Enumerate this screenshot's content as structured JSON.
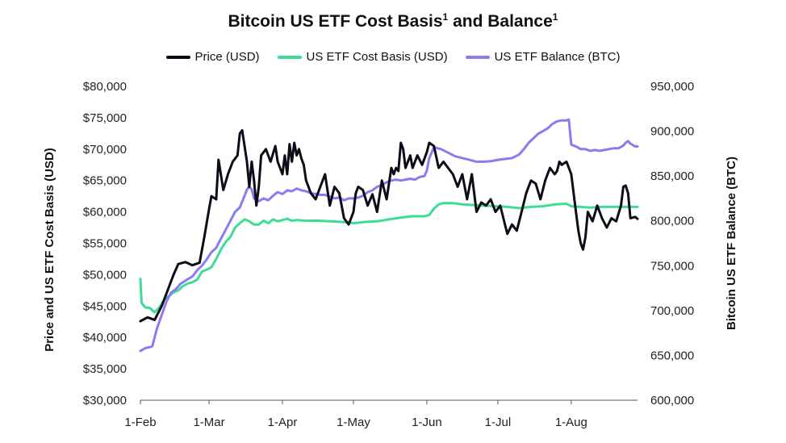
{
  "chart_data": {
    "type": "line",
    "title": "Bitcoin US ETF Cost Basis",
    "title_sup": "1",
    "title_mid": " and Balance",
    "title_sup2": "1",
    "ylabel_left": "Price and US ETF Cost Basis (USD)",
    "ylabel_right": "Bitcoin US ETF Balance (BTC)",
    "x_ticks": [
      {
        "label": "1-Feb",
        "day": 0
      },
      {
        "label": "1-Mar",
        "day": 29
      },
      {
        "label": "1-Apr",
        "day": 60
      },
      {
        "label": "1-May",
        "day": 90
      },
      {
        "label": "1-Jun",
        "day": 121
      },
      {
        "label": "1-Jul",
        "day": 151
      },
      {
        "label": "1-Aug",
        "day": 182
      }
    ],
    "x_range": [
      0,
      210
    ],
    "ylim_left": [
      30000,
      80000
    ],
    "yticks_left": [
      "$30,000",
      "$35,000",
      "$40,000",
      "$45,000",
      "$50,000",
      "$55,000",
      "$60,000",
      "$65,000",
      "$70,000",
      "$75,000",
      "$80,000"
    ],
    "ylim_right": [
      600000,
      950000
    ],
    "yticks_right": [
      "600,000",
      "650,000",
      "700,000",
      "750,000",
      "800,000",
      "850,000",
      "900,000",
      "950,000"
    ],
    "colors": {
      "price": "#0d0d1a",
      "cost_basis": "#3ddc97",
      "balance": "#8a7cf0"
    },
    "series": [
      {
        "key": "price",
        "name": "Price (USD)",
        "axis": "left",
        "points": [
          [
            0,
            42600
          ],
          [
            3,
            43200
          ],
          [
            6,
            42800
          ],
          [
            9,
            45000
          ],
          [
            12,
            48000
          ],
          [
            14,
            50000
          ],
          [
            16,
            51700
          ],
          [
            19,
            52000
          ],
          [
            22,
            51500
          ],
          [
            25,
            51900
          ],
          [
            27,
            56000
          ],
          [
            29,
            60500
          ],
          [
            30,
            62500
          ],
          [
            32,
            62000
          ],
          [
            33,
            68300
          ],
          [
            35,
            63500
          ],
          [
            37,
            66000
          ],
          [
            39,
            68000
          ],
          [
            41,
            69000
          ],
          [
            42,
            72500
          ],
          [
            43,
            73000
          ],
          [
            45,
            68000
          ],
          [
            46,
            64000
          ],
          [
            47,
            68000
          ],
          [
            48,
            65000
          ],
          [
            49,
            61000
          ],
          [
            50,
            64000
          ],
          [
            51,
            69000
          ],
          [
            53,
            70000
          ],
          [
            55,
            68000
          ],
          [
            57,
            70500
          ],
          [
            58,
            68000
          ],
          [
            60,
            66000
          ],
          [
            61,
            69000
          ],
          [
            62,
            66000
          ],
          [
            63,
            70800
          ],
          [
            64,
            68000
          ],
          [
            65,
            71000
          ],
          [
            66,
            69000
          ],
          [
            67,
            70000
          ],
          [
            68,
            68500
          ],
          [
            69,
            67500
          ],
          [
            70,
            65000
          ],
          [
            72,
            63000
          ],
          [
            74,
            62000
          ],
          [
            76,
            64000
          ],
          [
            78,
            66000
          ],
          [
            80,
            61000
          ],
          [
            82,
            64000
          ],
          [
            84,
            63000
          ],
          [
            86,
            59000
          ],
          [
            88,
            58000
          ],
          [
            90,
            60000
          ],
          [
            91,
            63000
          ],
          [
            92,
            64000
          ],
          [
            94,
            63500
          ],
          [
            96,
            61000
          ],
          [
            98,
            62800
          ],
          [
            100,
            60000
          ],
          [
            102,
            65000
          ],
          [
            104,
            62000
          ],
          [
            106,
            67000
          ],
          [
            107,
            66000
          ],
          [
            108,
            67000
          ],
          [
            109,
            66500
          ],
          [
            110,
            71000
          ],
          [
            111,
            70000
          ],
          [
            112,
            67000
          ],
          [
            114,
            69000
          ],
          [
            115,
            67000
          ],
          [
            117,
            69000
          ],
          [
            119,
            67500
          ],
          [
            121,
            69500
          ],
          [
            122,
            71000
          ],
          [
            124,
            70500
          ],
          [
            126,
            67000
          ],
          [
            128,
            68000
          ],
          [
            130,
            67000
          ],
          [
            132,
            66000
          ],
          [
            134,
            64000
          ],
          [
            136,
            66000
          ],
          [
            138,
            62000
          ],
          [
            140,
            66000
          ],
          [
            142,
            60000
          ],
          [
            144,
            61500
          ],
          [
            146,
            61000
          ],
          [
            148,
            62000
          ],
          [
            150,
            60000
          ],
          [
            152,
            61000
          ],
          [
            154,
            58000
          ],
          [
            155,
            56500
          ],
          [
            157,
            58000
          ],
          [
            159,
            57000
          ],
          [
            161,
            60000
          ],
          [
            163,
            63000
          ],
          [
            165,
            65000
          ],
          [
            167,
            64500
          ],
          [
            169,
            62000
          ],
          [
            171,
            65000
          ],
          [
            173,
            67000
          ],
          [
            175,
            66000
          ],
          [
            176,
            66500
          ],
          [
            177,
            68000
          ],
          [
            178,
            67500
          ],
          [
            180,
            68000
          ],
          [
            182,
            66000
          ],
          [
            184,
            60000
          ],
          [
            185,
            57000
          ],
          [
            186,
            55000
          ],
          [
            187,
            54000
          ],
          [
            188,
            56000
          ],
          [
            189,
            60000
          ],
          [
            191,
            58500
          ],
          [
            193,
            61000
          ],
          [
            195,
            59000
          ],
          [
            197,
            57500
          ],
          [
            199,
            59000
          ],
          [
            201,
            58500
          ],
          [
            203,
            61000
          ],
          [
            204,
            64000
          ],
          [
            205,
            64200
          ],
          [
            206,
            63000
          ],
          [
            207,
            59000
          ],
          [
            209,
            59200
          ],
          [
            210,
            58900
          ]
        ]
      },
      {
        "key": "cost_basis",
        "name": "US ETF Cost Basis (USD)",
        "axis": "left",
        "points": [
          [
            0,
            49300
          ],
          [
            0.5,
            45500
          ],
          [
            2,
            44800
          ],
          [
            4,
            44700
          ],
          [
            6,
            44000
          ],
          [
            8,
            44800
          ],
          [
            10,
            46000
          ],
          [
            12,
            46600
          ],
          [
            14,
            47200
          ],
          [
            16,
            47500
          ],
          [
            18,
            48200
          ],
          [
            20,
            48600
          ],
          [
            22,
            48800
          ],
          [
            24,
            49200
          ],
          [
            26,
            50500
          ],
          [
            28,
            50800
          ],
          [
            30,
            51200
          ],
          [
            32,
            52500
          ],
          [
            34,
            54000
          ],
          [
            36,
            55200
          ],
          [
            38,
            56000
          ],
          [
            40,
            57500
          ],
          [
            42,
            58200
          ],
          [
            44,
            58800
          ],
          [
            46,
            58500
          ],
          [
            48,
            58000
          ],
          [
            50,
            58000
          ],
          [
            52,
            58600
          ],
          [
            54,
            58200
          ],
          [
            56,
            58800
          ],
          [
            58,
            58500
          ],
          [
            60,
            58700
          ],
          [
            62,
            58900
          ],
          [
            64,
            58600
          ],
          [
            66,
            58700
          ],
          [
            70,
            58600
          ],
          [
            75,
            58600
          ],
          [
            80,
            58500
          ],
          [
            85,
            58400
          ],
          [
            88,
            58300
          ],
          [
            90,
            58200
          ],
          [
            95,
            58400
          ],
          [
            100,
            58500
          ],
          [
            105,
            58800
          ],
          [
            110,
            59100
          ],
          [
            115,
            59300
          ],
          [
            120,
            59300
          ],
          [
            122,
            59500
          ],
          [
            124,
            60500
          ],
          [
            126,
            61200
          ],
          [
            128,
            61400
          ],
          [
            132,
            61400
          ],
          [
            136,
            61200
          ],
          [
            140,
            61100
          ],
          [
            145,
            61000
          ],
          [
            150,
            60900
          ],
          [
            155,
            60800
          ],
          [
            160,
            60600
          ],
          [
            165,
            60800
          ],
          [
            170,
            60900
          ],
          [
            175,
            61200
          ],
          [
            180,
            61300
          ],
          [
            182,
            60900
          ],
          [
            186,
            60800
          ],
          [
            190,
            60700
          ],
          [
            195,
            60800
          ],
          [
            200,
            60800
          ],
          [
            205,
            60800
          ],
          [
            210,
            60800
          ]
        ]
      },
      {
        "key": "balance",
        "name": "US ETF Balance (BTC)",
        "axis": "right",
        "points": [
          [
            0,
            655000
          ],
          [
            2,
            658000
          ],
          [
            5,
            660000
          ],
          [
            7,
            680000
          ],
          [
            9,
            695000
          ],
          [
            11,
            710000
          ],
          [
            13,
            720000
          ],
          [
            15,
            724000
          ],
          [
            17,
            730000
          ],
          [
            20,
            735000
          ],
          [
            22,
            738000
          ],
          [
            24,
            745000
          ],
          [
            26,
            750000
          ],
          [
            28,
            757000
          ],
          [
            30,
            765000
          ],
          [
            32,
            770000
          ],
          [
            34,
            780000
          ],
          [
            36,
            790000
          ],
          [
            38,
            800000
          ],
          [
            40,
            810000
          ],
          [
            42,
            815000
          ],
          [
            44,
            828000
          ],
          [
            45,
            835000
          ],
          [
            46,
            838000
          ],
          [
            47,
            835000
          ],
          [
            48,
            825000
          ],
          [
            50,
            822000
          ],
          [
            52,
            825000
          ],
          [
            54,
            823000
          ],
          [
            56,
            828000
          ],
          [
            58,
            832000
          ],
          [
            60,
            830000
          ],
          [
            62,
            834000
          ],
          [
            64,
            833000
          ],
          [
            66,
            836000
          ],
          [
            68,
            834000
          ],
          [
            70,
            833000
          ],
          [
            72,
            831000
          ],
          [
            74,
            830000
          ],
          [
            76,
            829000
          ],
          [
            78,
            829000
          ],
          [
            80,
            827000
          ],
          [
            82,
            825000
          ],
          [
            84,
            826000
          ],
          [
            86,
            823000
          ],
          [
            88,
            825000
          ],
          [
            90,
            825000
          ],
          [
            92,
            826000
          ],
          [
            94,
            828000
          ],
          [
            96,
            832000
          ],
          [
            98,
            834000
          ],
          [
            100,
            838000
          ],
          [
            102,
            840000
          ],
          [
            104,
            843000
          ],
          [
            106,
            845000
          ],
          [
            108,
            846000
          ],
          [
            110,
            845000
          ],
          [
            112,
            846000
          ],
          [
            114,
            847000
          ],
          [
            116,
            846000
          ],
          [
            118,
            849000
          ],
          [
            120,
            850000
          ],
          [
            121,
            856000
          ],
          [
            122,
            870000
          ],
          [
            124,
            882000
          ],
          [
            127,
            880000
          ],
          [
            130,
            876000
          ],
          [
            133,
            872000
          ],
          [
            136,
            870000
          ],
          [
            139,
            868000
          ],
          [
            142,
            866000
          ],
          [
            145,
            866000
          ],
          [
            148,
            866500
          ],
          [
            151,
            868000
          ],
          [
            154,
            869000
          ],
          [
            157,
            870000
          ],
          [
            160,
            874000
          ],
          [
            162,
            880000
          ],
          [
            164,
            887000
          ],
          [
            166,
            892000
          ],
          [
            168,
            897000
          ],
          [
            170,
            900000
          ],
          [
            172,
            903000
          ],
          [
            174,
            908000
          ],
          [
            176,
            911000
          ],
          [
            178,
            912000
          ],
          [
            180,
            912000
          ],
          [
            181,
            913000
          ],
          [
            182,
            885000
          ],
          [
            184,
            883000
          ],
          [
            186,
            880000
          ],
          [
            188,
            880000
          ],
          [
            190,
            878000
          ],
          [
            192,
            879000
          ],
          [
            194,
            878000
          ],
          [
            196,
            879000
          ],
          [
            198,
            880000
          ],
          [
            200,
            881000
          ],
          [
            202,
            881000
          ],
          [
            204,
            884000
          ],
          [
            205,
            887000
          ],
          [
            206,
            889000
          ],
          [
            207,
            886000
          ],
          [
            209,
            883000
          ],
          [
            210,
            883000
          ]
        ]
      }
    ]
  }
}
